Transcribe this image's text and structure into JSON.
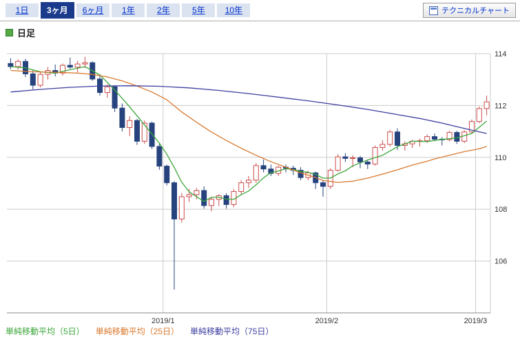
{
  "tabs": {
    "items": [
      {
        "label": "1日",
        "selected": false
      },
      {
        "label": "3ヶ月",
        "selected": true
      },
      {
        "label": "6ヶ月",
        "selected": false
      },
      {
        "label": "1年",
        "selected": false
      },
      {
        "label": "2年",
        "selected": false
      },
      {
        "label": "5年",
        "selected": false
      },
      {
        "label": "10年",
        "selected": false
      }
    ],
    "selected_bg": "#1a3a8c",
    "tab_bg": "#dbe2f0",
    "link_color": "#0033cc"
  },
  "toolbar": {
    "button_label": "テクニカルチャート",
    "icon": "chart-window-icon"
  },
  "chart_header": {
    "title": "日足",
    "bullet_icon": "green-square-bullet",
    "bullet_color": "#55aa44"
  },
  "legend": {
    "items": [
      {
        "label": "単純移動平均（5日）",
        "color": "#3aa63a"
      },
      {
        "label": "単純移動平均（25日）",
        "color": "#d9782d"
      },
      {
        "label": "単純移動平均（75日）",
        "color": "#3c3ca0"
      }
    ]
  },
  "chart_data": {
    "type": "candlestick",
    "title": "日足",
    "ylim": [
      104,
      114
    ],
    "y_ticks": [
      114,
      112,
      110,
      108,
      106
    ],
    "x_gridlines": [
      {
        "label": "2019/1",
        "index": 21
      },
      {
        "label": "2019/2",
        "index": 43
      },
      {
        "label": "2019/3",
        "index": 63
      }
    ],
    "grid": true,
    "legend_position": "bottom",
    "colors": {
      "up": "#ffffff",
      "up_border": "#cc4a4a",
      "down": "#26437e",
      "grid": "#cccccc",
      "axis": "#888888",
      "text": "#333333"
    },
    "candles": [
      [
        113.62,
        113.82,
        113.4,
        113.5
      ],
      [
        113.5,
        113.78,
        113.38,
        113.7
      ],
      [
        113.7,
        113.8,
        113.1,
        113.22
      ],
      [
        113.22,
        113.35,
        112.62,
        112.78
      ],
      [
        112.78,
        113.3,
        112.7,
        113.2
      ],
      [
        113.2,
        113.48,
        113.0,
        113.35
      ],
      [
        113.35,
        113.58,
        113.12,
        113.25
      ],
      [
        113.25,
        113.62,
        113.15,
        113.55
      ],
      [
        113.55,
        113.85,
        113.42,
        113.48
      ],
      [
        113.48,
        113.72,
        113.28,
        113.6
      ],
      [
        113.6,
        113.88,
        113.45,
        113.65
      ],
      [
        113.65,
        113.7,
        112.95,
        113.02
      ],
      [
        113.02,
        113.18,
        112.38,
        112.5
      ],
      [
        112.5,
        112.82,
        112.3,
        112.72
      ],
      [
        112.72,
        112.78,
        111.75,
        111.9
      ],
      [
        111.9,
        112.08,
        111.0,
        111.15
      ],
      [
        111.15,
        111.58,
        110.82,
        111.42
      ],
      [
        111.42,
        111.48,
        110.48,
        110.62
      ],
      [
        110.62,
        111.42,
        110.52,
        111.32
      ],
      [
        111.32,
        111.38,
        110.32,
        110.42
      ],
      [
        110.42,
        110.52,
        109.52,
        109.66
      ],
      [
        109.66,
        109.72,
        108.92,
        109.02
      ],
      [
        109.02,
        109.08,
        104.9,
        107.62
      ],
      [
        107.62,
        108.62,
        107.48,
        108.48
      ],
      [
        108.48,
        108.78,
        108.28,
        108.56
      ],
      [
        108.56,
        108.82,
        108.38,
        108.72
      ],
      [
        108.72,
        108.88,
        108.02,
        108.14
      ],
      [
        108.14,
        108.48,
        107.92,
        108.38
      ],
      [
        108.38,
        108.58,
        108.12,
        108.52
      ],
      [
        108.52,
        108.62,
        108.02,
        108.18
      ],
      [
        108.18,
        108.78,
        108.08,
        108.68
      ],
      [
        108.68,
        109.12,
        108.58,
        109.02
      ],
      [
        109.02,
        109.28,
        108.82,
        109.12
      ],
      [
        109.12,
        109.78,
        109.02,
        109.68
      ],
      [
        109.68,
        109.92,
        109.42,
        109.55
      ],
      [
        109.55,
        109.72,
        109.28,
        109.38
      ],
      [
        109.38,
        109.68,
        109.28,
        109.62
      ],
      [
        109.62,
        109.72,
        109.42,
        109.58
      ],
      [
        109.58,
        109.68,
        109.32,
        109.5
      ],
      [
        109.5,
        109.62,
        109.12,
        109.22
      ],
      [
        109.22,
        109.48,
        109.12,
        109.4
      ],
      [
        109.4,
        109.45,
        108.78,
        109.02
      ],
      [
        109.02,
        109.12,
        108.48,
        108.88
      ],
      [
        108.88,
        109.58,
        108.78,
        109.5
      ],
      [
        109.5,
        110.12,
        109.45,
        110.02
      ],
      [
        110.02,
        110.16,
        109.82,
        109.96
      ],
      [
        109.96,
        110.08,
        109.62,
        109.98
      ],
      [
        109.98,
        110.05,
        109.58,
        109.82
      ],
      [
        109.82,
        109.88,
        109.55,
        109.74
      ],
      [
        109.74,
        110.46,
        109.68,
        110.38
      ],
      [
        110.38,
        110.66,
        110.26,
        110.5
      ],
      [
        110.5,
        111.06,
        110.42,
        110.98
      ],
      [
        110.98,
        111.12,
        110.28,
        110.46
      ],
      [
        110.46,
        110.62,
        110.26,
        110.52
      ],
      [
        110.52,
        110.68,
        110.36,
        110.62
      ],
      [
        110.62,
        110.72,
        110.42,
        110.64
      ],
      [
        110.64,
        110.88,
        110.56,
        110.8
      ],
      [
        110.8,
        110.92,
        110.62,
        110.7
      ],
      [
        110.7,
        110.78,
        110.46,
        110.68
      ],
      [
        110.68,
        111.02,
        110.62,
        110.96
      ],
      [
        110.96,
        111.02,
        110.52,
        110.62
      ],
      [
        110.62,
        111.05,
        110.55,
        110.98
      ],
      [
        110.98,
        111.46,
        110.9,
        111.38
      ],
      [
        111.38,
        111.96,
        111.32,
        111.88
      ],
      [
        111.88,
        112.38,
        111.62,
        112.14
      ]
    ],
    "moving_averages": [
      {
        "name": "単純移動平均（5日）",
        "period": 5,
        "color": "#3aa63a",
        "points": [
          [
            0,
            113.5
          ],
          [
            2,
            113.45
          ],
          [
            4,
            113.3
          ],
          [
            6,
            113.25
          ],
          [
            8,
            113.38
          ],
          [
            10,
            113.5
          ],
          [
            12,
            113.18
          ],
          [
            14,
            112.6
          ],
          [
            16,
            111.95
          ],
          [
            18,
            111.25
          ],
          [
            20,
            110.55
          ],
          [
            21,
            110.12
          ],
          [
            22,
            109.61
          ],
          [
            23,
            109.04
          ],
          [
            24,
            108.67
          ],
          [
            25,
            108.48
          ],
          [
            26,
            108.3
          ],
          [
            27,
            108.46
          ],
          [
            28,
            108.46
          ],
          [
            29,
            108.39
          ],
          [
            30,
            108.38
          ],
          [
            31,
            108.56
          ],
          [
            32,
            108.7
          ],
          [
            33,
            108.94
          ],
          [
            34,
            109.21
          ],
          [
            35,
            109.41
          ],
          [
            36,
            109.47
          ],
          [
            37,
            109.56
          ],
          [
            38,
            109.53
          ],
          [
            39,
            109.46
          ],
          [
            40,
            109.42
          ],
          [
            41,
            109.34
          ],
          [
            42,
            109.2
          ],
          [
            43,
            109.2
          ],
          [
            44,
            109.36
          ],
          [
            45,
            109.48
          ],
          [
            46,
            109.67
          ],
          [
            48,
            109.9
          ],
          [
            50,
            110.08
          ],
          [
            52,
            110.41
          ],
          [
            54,
            110.62
          ],
          [
            56,
            110.61
          ],
          [
            58,
            110.69
          ],
          [
            60,
            110.75
          ],
          [
            62,
            110.92
          ],
          [
            63,
            111.16
          ],
          [
            64,
            111.4
          ]
        ]
      },
      {
        "name": "単純移動平均（25日）",
        "period": 25,
        "color": "#d9782d",
        "points": [
          [
            0,
            113.35
          ],
          [
            3,
            113.3
          ],
          [
            6,
            113.28
          ],
          [
            9,
            113.25
          ],
          [
            11,
            113.2
          ],
          [
            13,
            113.1
          ],
          [
            15,
            112.95
          ],
          [
            17,
            112.75
          ],
          [
            19,
            112.52
          ],
          [
            21,
            112.22
          ],
          [
            23,
            111.75
          ],
          [
            25,
            111.35
          ],
          [
            27,
            110.98
          ],
          [
            29,
            110.65
          ],
          [
            31,
            110.35
          ],
          [
            33,
            110.08
          ],
          [
            35,
            109.83
          ],
          [
            37,
            109.62
          ],
          [
            39,
            109.4
          ],
          [
            41,
            109.22
          ],
          [
            42,
            109.11
          ],
          [
            44,
            109.03
          ],
          [
            46,
            109.08
          ],
          [
            48,
            109.2
          ],
          [
            50,
            109.35
          ],
          [
            52,
            109.52
          ],
          [
            54,
            109.7
          ],
          [
            56,
            109.85
          ],
          [
            57,
            109.94
          ],
          [
            59,
            110.08
          ],
          [
            61,
            110.22
          ],
          [
            63,
            110.33
          ],
          [
            64,
            110.42
          ]
        ]
      },
      {
        "name": "単純移動平均（75日）",
        "period": 75,
        "color": "#3c3ca0",
        "points": [
          [
            0,
            112.52
          ],
          [
            4,
            112.62
          ],
          [
            8,
            112.7
          ],
          [
            12,
            112.75
          ],
          [
            16,
            112.76
          ],
          [
            20,
            112.74
          ],
          [
            24,
            112.68
          ],
          [
            28,
            112.58
          ],
          [
            32,
            112.46
          ],
          [
            36,
            112.32
          ],
          [
            40,
            112.18
          ],
          [
            44,
            112.02
          ],
          [
            48,
            111.85
          ],
          [
            52,
            111.65
          ],
          [
            55,
            111.5
          ],
          [
            58,
            111.32
          ],
          [
            60,
            111.18
          ],
          [
            62,
            111.05
          ],
          [
            64,
            110.92
          ]
        ]
      }
    ]
  }
}
